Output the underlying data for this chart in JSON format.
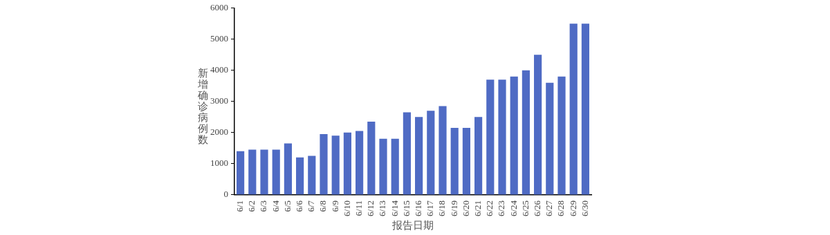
{
  "chart_data": {
    "type": "bar",
    "xlabel": "报告日期",
    "ylabel": "新增确诊病例数",
    "categories": [
      "6/1",
      "6/2",
      "6/3",
      "6/4",
      "6/5",
      "6/6",
      "6/7",
      "6/8",
      "6/9",
      "6/10",
      "6/11",
      "6/12",
      "6/13",
      "6/14",
      "6/15",
      "6/16",
      "6/17",
      "6/18",
      "6/19",
      "6/20",
      "6/21",
      "6/22",
      "6/23",
      "6/24",
      "6/25",
      "6/26",
      "6/27",
      "6/28",
      "6/29",
      "6/30"
    ],
    "values": [
      1400,
      1450,
      1450,
      1450,
      1650,
      1200,
      1250,
      1950,
      1900,
      2000,
      2050,
      2350,
      1800,
      1800,
      2650,
      2500,
      2700,
      2850,
      2150,
      2150,
      2500,
      3700,
      3700,
      3800,
      4000,
      4500,
      3600,
      3800,
      5500,
      5500
    ],
    "color": "#4f6bc4",
    "ylim": [
      0,
      6000
    ],
    "yticks": [
      0,
      1000,
      2000,
      3000,
      4000,
      5000,
      6000
    ],
    "grid": false,
    "legend": false
  }
}
